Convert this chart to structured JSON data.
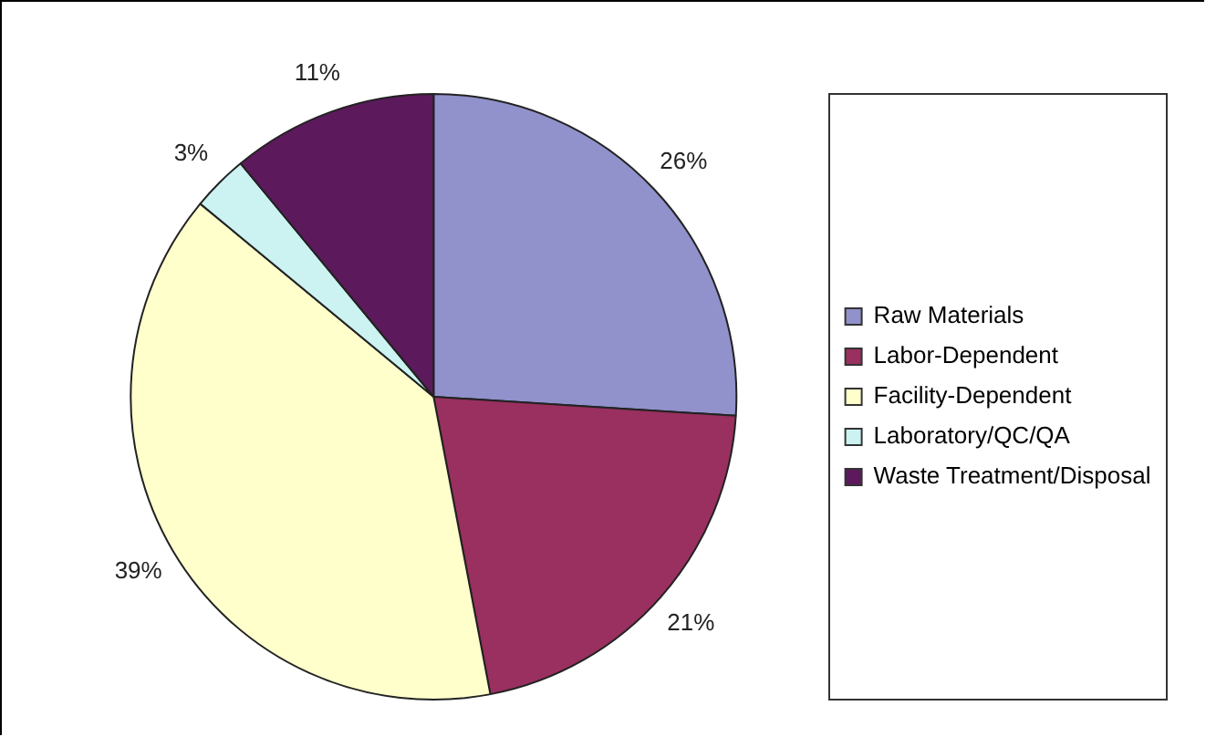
{
  "chart_data": {
    "type": "pie",
    "categories": [
      "Raw Materials",
      "Labor-Dependent",
      "Facility-Dependent",
      "Laboratory/QC/QA",
      "Waste Treatment/Disposal"
    ],
    "values": [
      26,
      21,
      39,
      3,
      11
    ],
    "value_labels": [
      "26%",
      "21%",
      "39%",
      "3%",
      "11%"
    ],
    "colors": [
      "#9191cc",
      "#99305f",
      "#ffffcc",
      "#ccf2f2",
      "#5c1a5c"
    ],
    "legend": "right"
  }
}
